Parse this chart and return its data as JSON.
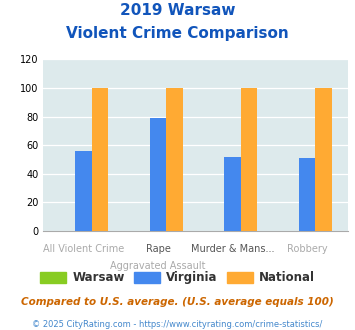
{
  "title_line1": "2019 Warsaw",
  "title_line2": "Violent Crime Comparison",
  "cat_labels_top": [
    "",
    "Rape",
    "Murder & Mans...",
    ""
  ],
  "cat_labels_bot": [
    "All Violent Crime",
    "Aggravated Assault",
    "",
    "Robbery"
  ],
  "series": {
    "Warsaw": {
      "color": "#88cc22",
      "values": [
        0,
        0,
        0,
        0
      ]
    },
    "Virginia": {
      "color": "#4488ee",
      "values": [
        56,
        79,
        52,
        51
      ]
    },
    "National": {
      "color": "#ffaa33",
      "values": [
        100,
        100,
        100,
        100
      ]
    }
  },
  "ylim": [
    0,
    120
  ],
  "yticks": [
    0,
    20,
    40,
    60,
    80,
    100,
    120
  ],
  "legend_order": [
    "Warsaw",
    "Virginia",
    "National"
  ],
  "footnote1": "Compared to U.S. average. (U.S. average equals 100)",
  "footnote2": "© 2025 CityRating.com - https://www.cityrating.com/crime-statistics/",
  "bg_color": "#ddeaec",
  "title_color": "#1155bb",
  "footnote1_color": "#cc6600",
  "footnote2_color": "#4488cc"
}
